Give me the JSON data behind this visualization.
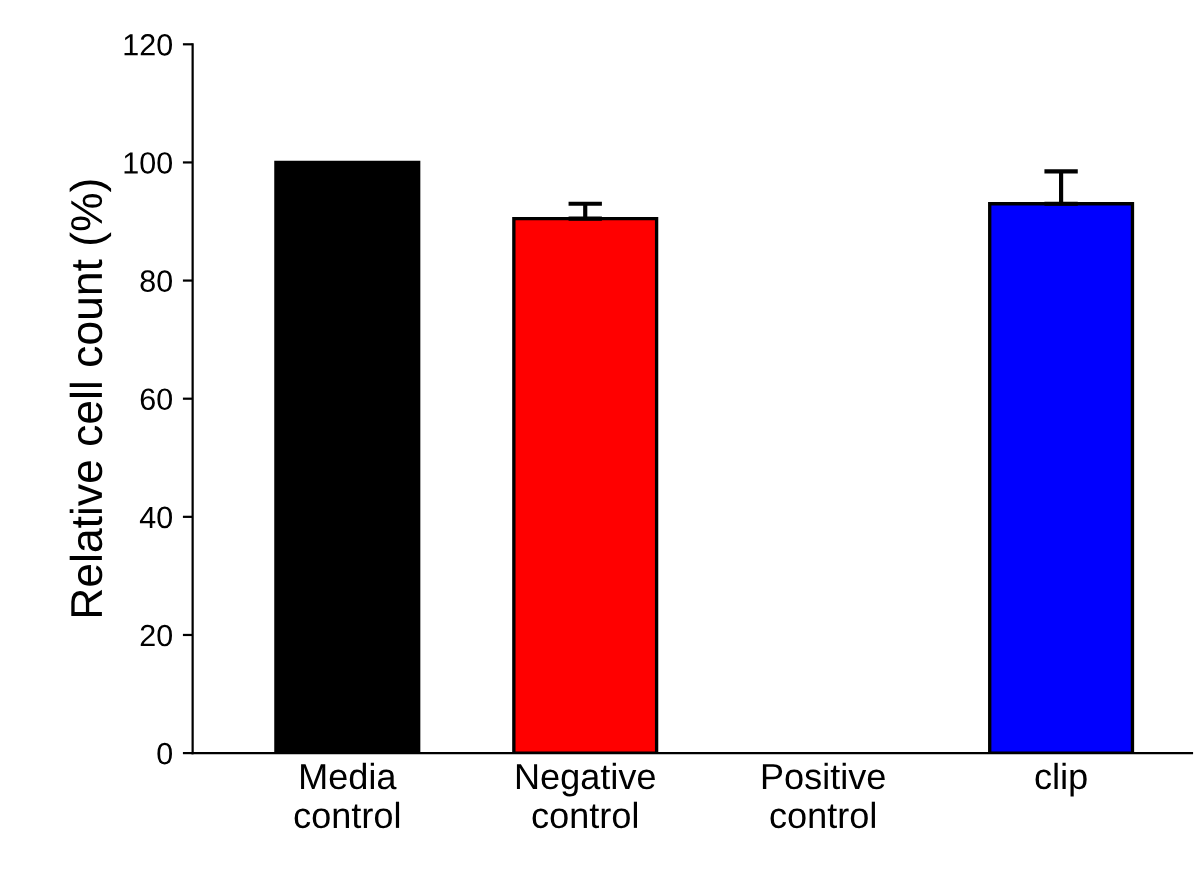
{
  "chart_data": {
    "type": "bar",
    "ylabel": "Relative cell count (%)",
    "categories": [
      "Media\ncontrol",
      "Negative\ncontrol",
      "Positive\ncontrol",
      "clip"
    ],
    "values": [
      100,
      90.5,
      null,
      93.0
    ],
    "colors": [
      "#000000",
      "#ff0000",
      null,
      "#0000ff"
    ],
    "errors": [
      null,
      2.5,
      null,
      5.5
    ],
    "ylim": [
      0,
      120
    ],
    "yticks": [
      0,
      20,
      40,
      60,
      80,
      100,
      120
    ],
    "grid": false
  }
}
